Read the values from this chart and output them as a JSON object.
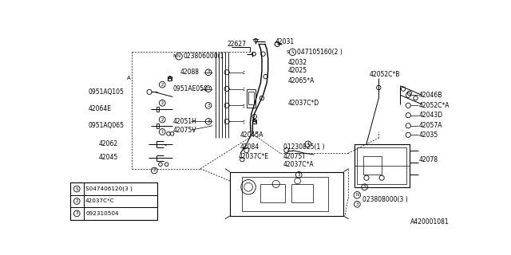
{
  "bg_color": "#ffffff",
  "line_color": "#000000",
  "fig_width": 6.4,
  "fig_height": 3.2,
  "dpi": 100,
  "bottom_right_label": "A420001081",
  "legend_rows": [
    [
      "S",
      "S047406120(3 )"
    ],
    [
      "2",
      "42037C*C"
    ],
    [
      "3",
      "092310504"
    ]
  ]
}
